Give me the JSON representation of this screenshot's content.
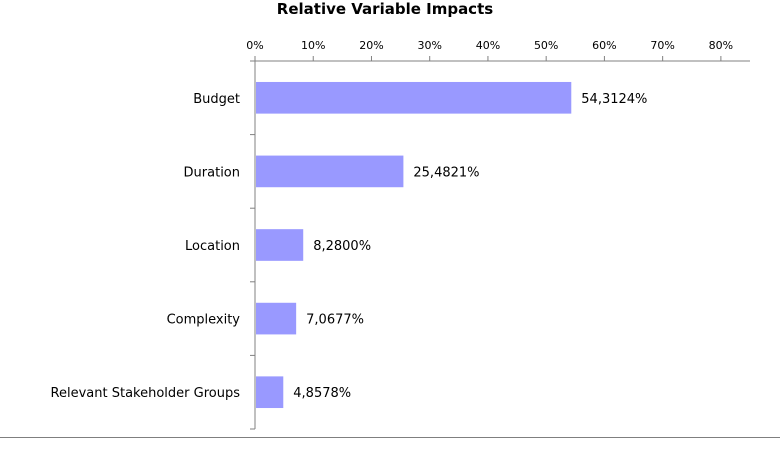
{
  "chart_data": {
    "type": "bar",
    "orientation": "horizontal",
    "title": "Relative Variable Impacts",
    "categories": [
      "Budget",
      "Duration",
      "Location",
      "Complexity",
      "Relevant Stakeholder Groups"
    ],
    "values": [
      54.3124,
      25.4821,
      8.28,
      7.0677,
      4.8578
    ],
    "value_labels": [
      "54,3124%",
      "25,4821%",
      "8,2800%",
      "7,0677%",
      "4,8578%"
    ],
    "xlim": [
      0,
      85
    ],
    "x_ticks": [
      0,
      10,
      20,
      30,
      40,
      50,
      60,
      70,
      80
    ],
    "x_tick_labels": [
      "0%",
      "10%",
      "20%",
      "30%",
      "40%",
      "50%",
      "60%",
      "70%",
      "80%"
    ],
    "x_axis_position": "top",
    "grid": false,
    "legend": "none",
    "bar_color": "#9999ff",
    "axis_color": "#808080"
  }
}
